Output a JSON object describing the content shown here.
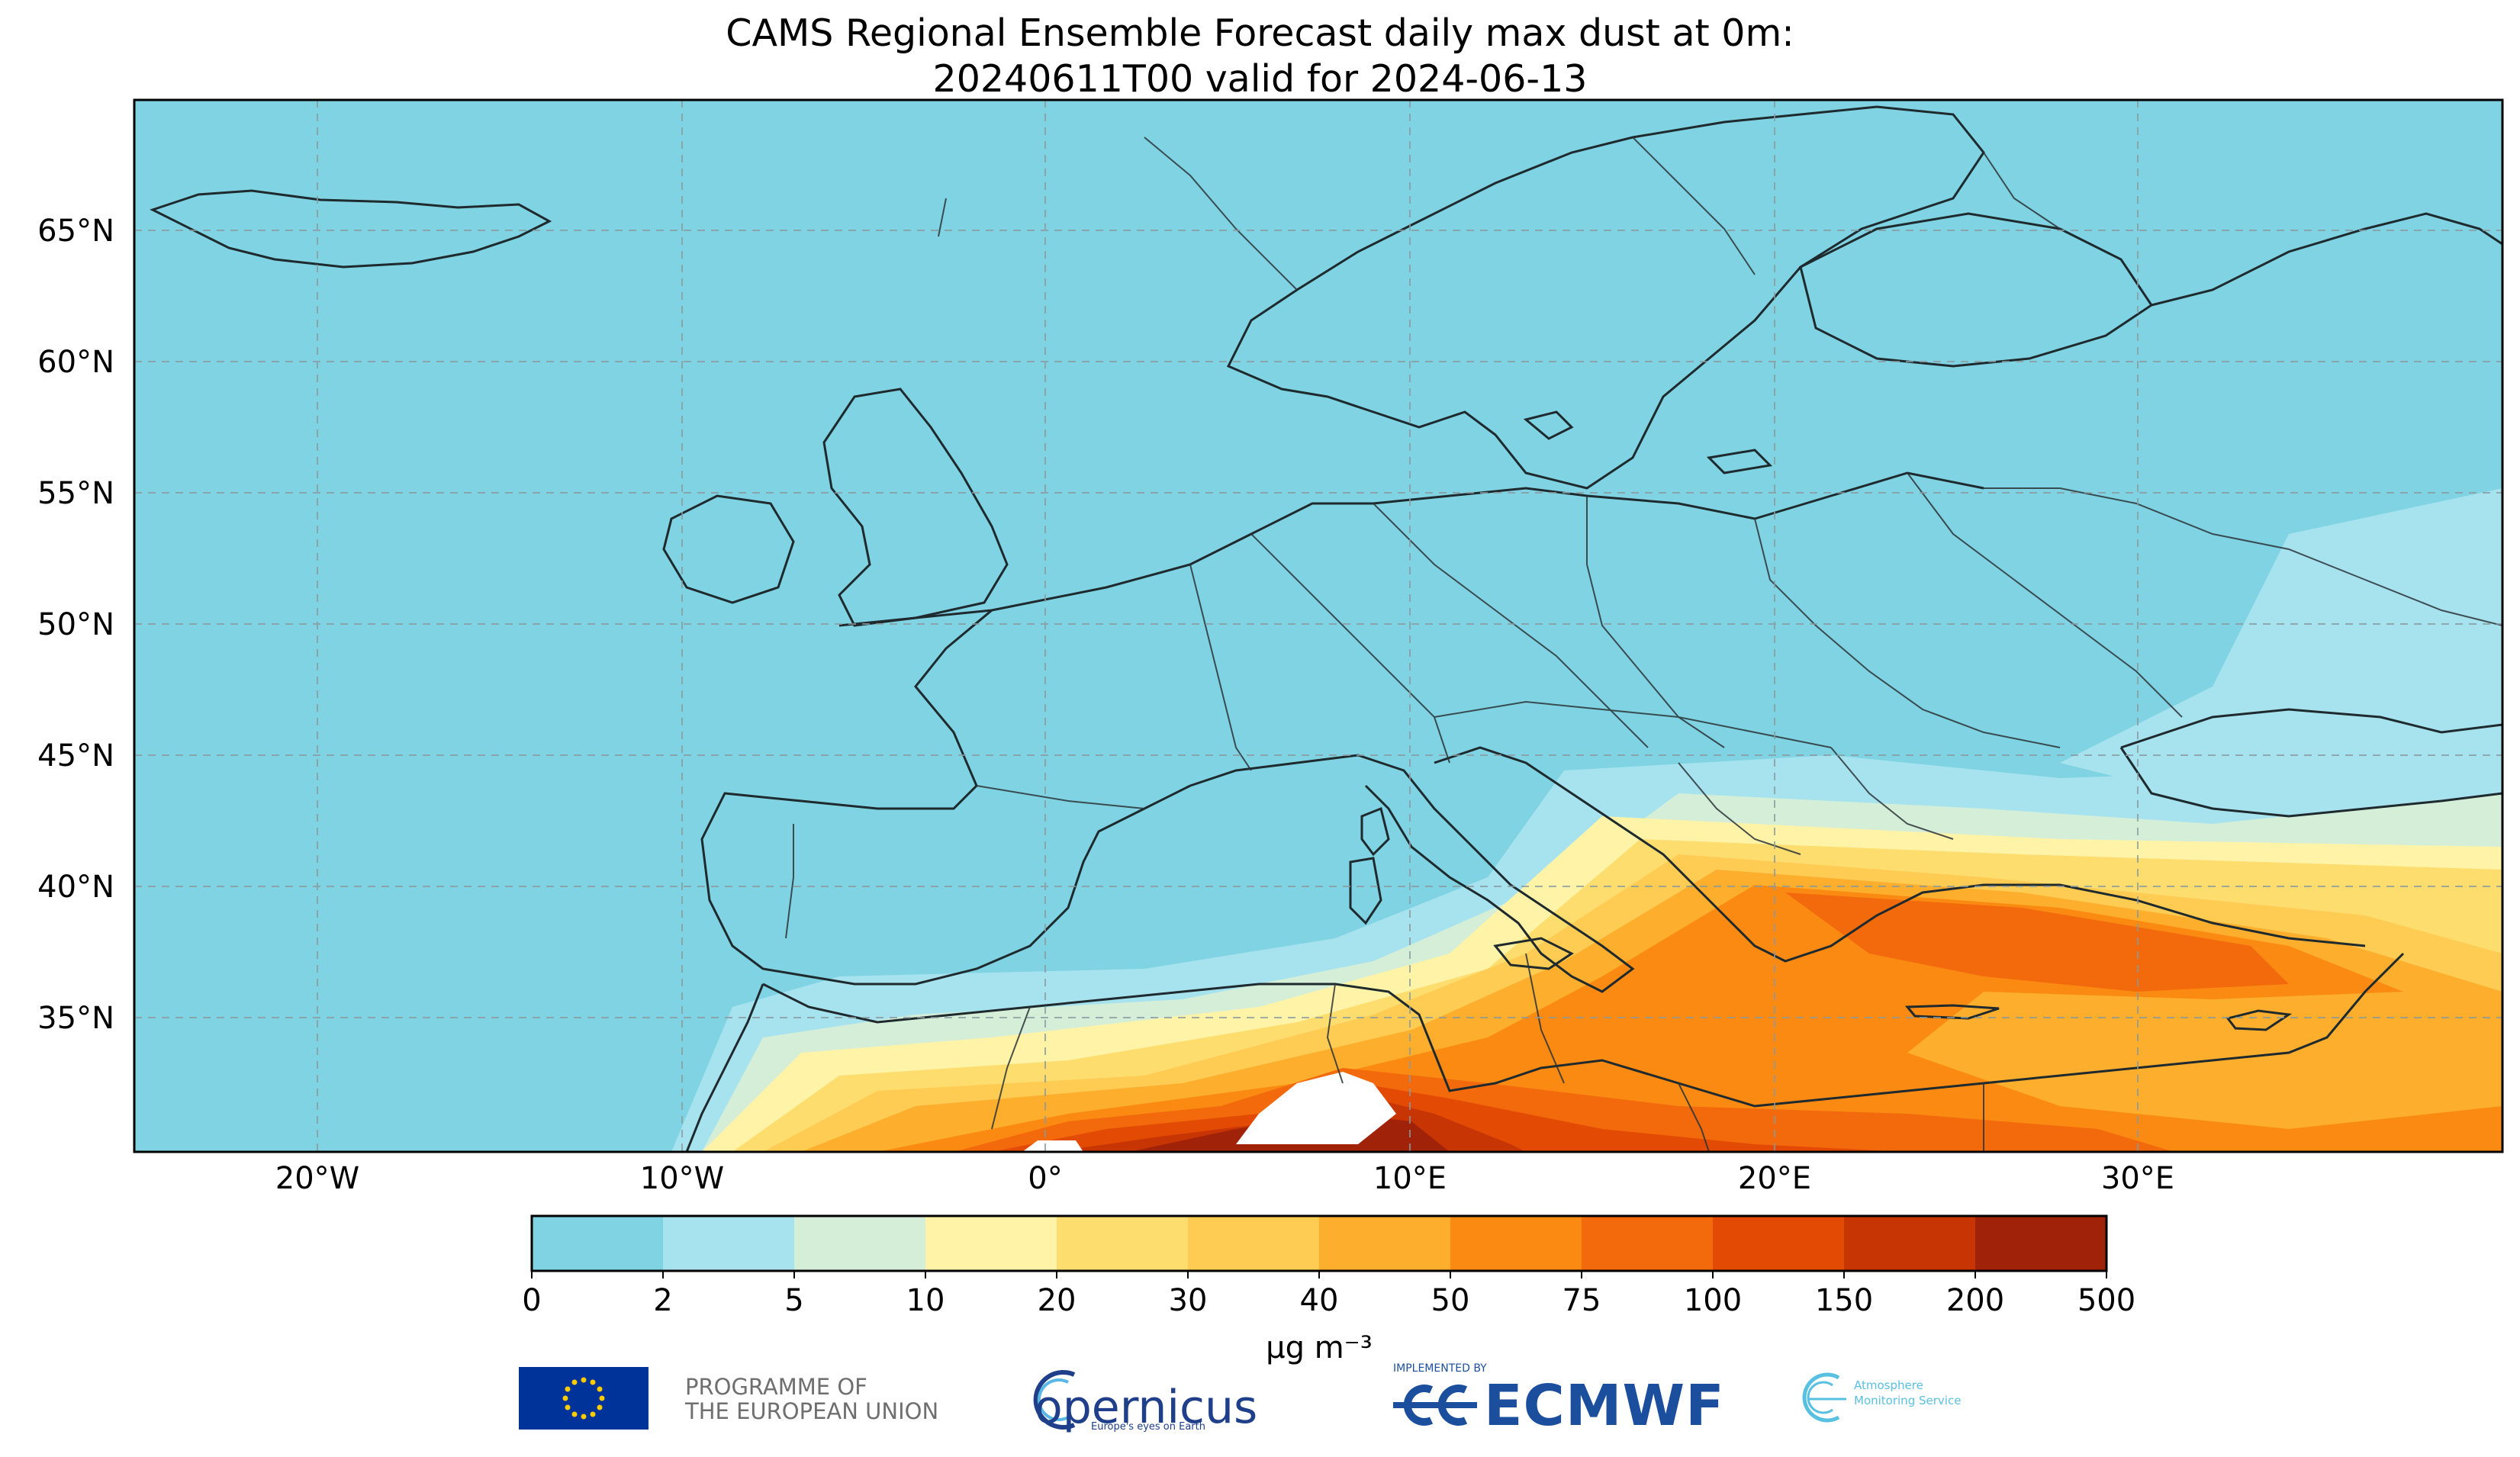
{
  "title": {
    "line1": "CAMS Regional Ensemble Forecast daily max dust at 0m:",
    "line2": "20240611T00 valid for 2024-06-13"
  },
  "map": {
    "lat_ticks": [
      "65°N",
      "60°N",
      "55°N",
      "50°N",
      "45°N",
      "40°N",
      "35°N"
    ],
    "lon_ticks": [
      "20°W",
      "10°W",
      "0°",
      "10°E",
      "20°E",
      "30°E"
    ],
    "extent_lon": [
      -25,
      40
    ],
    "extent_lat": [
      30,
      70
    ],
    "gridlines": true,
    "ocean_color": "#7fd3e3"
  },
  "colorbar": {
    "unit": "μg m⁻³",
    "boundaries": [
      "0",
      "2",
      "5",
      "10",
      "20",
      "30",
      "40",
      "50",
      "75",
      "100",
      "150",
      "200",
      "500"
    ],
    "colors": [
      "#7fd3e3",
      "#a7e3ef",
      "#d5eed8",
      "#fff3a7",
      "#fedd6f",
      "#fecb53",
      "#fdae2c",
      "#fb8a12",
      "#f26a0c",
      "#e34b04",
      "#c83505",
      "#a02309"
    ]
  },
  "logos": {
    "eu_text_line1": "PROGRAMME OF",
    "eu_text_line2": "THE EUROPEAN UNION",
    "copernicus_word": "opernicus",
    "copernicus_tag": "Europe's eyes on Earth",
    "ecmwf_implemented": "IMPLEMENTED BY",
    "ecmwf_word": "ECMWF",
    "ams_line1": "Atmosphere",
    "ams_line2": "Monitoring Service"
  }
}
